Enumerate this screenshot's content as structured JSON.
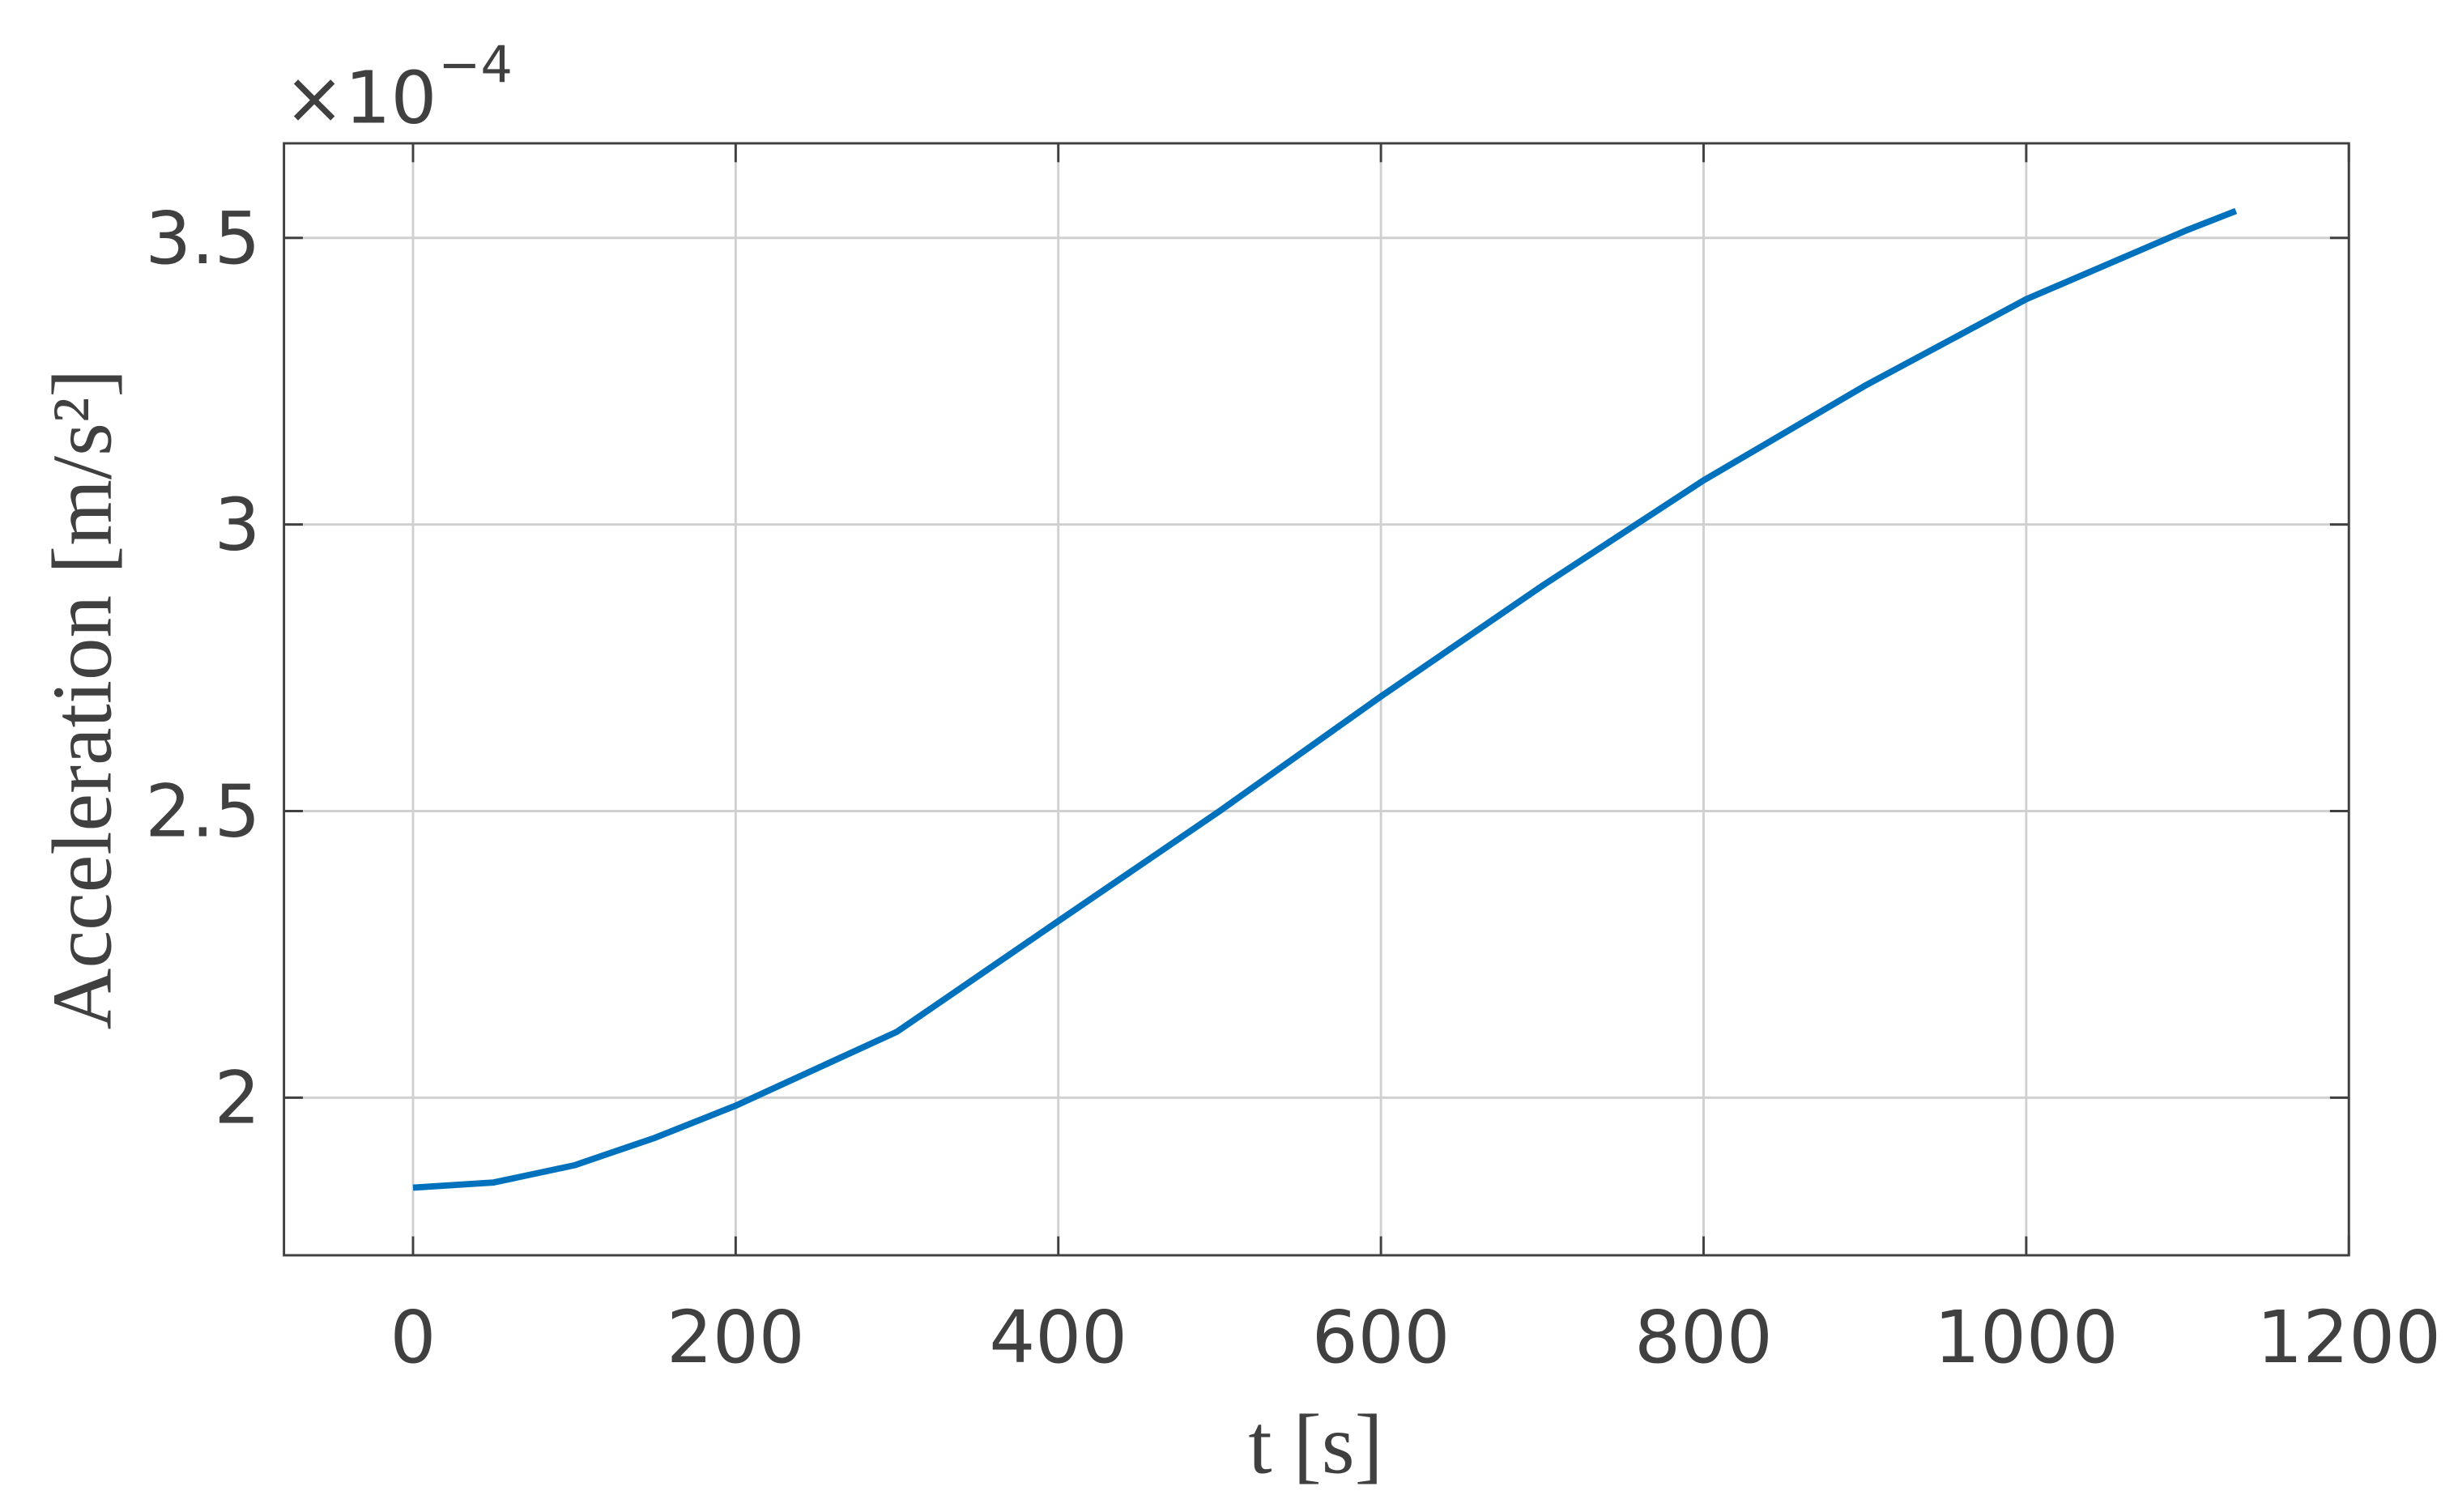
{
  "chart_data": {
    "type": "line",
    "x_label": "t [s]",
    "y_label": "Acceleration [m/s²]",
    "y_scale_base": "×10",
    "y_scale_exponent": "−4",
    "x": [
      0,
      50,
      100,
      150,
      200,
      300,
      400,
      500,
      600,
      700,
      800,
      900,
      1000,
      1100,
      1130
    ],
    "series": [
      {
        "color": "#0072bd",
        "values": [
          1.843,
          1.852,
          1.882,
          1.93,
          1.986,
          2.115,
          2.308,
          2.5,
          2.7,
          2.893,
          3.077,
          3.242,
          3.393,
          3.514,
          3.547
        ]
      }
    ],
    "xlim": [
      -80,
      1200
    ],
    "ylim": [
      1.725,
      3.665
    ],
    "xticks": [
      0,
      200,
      400,
      600,
      800,
      1000,
      1200
    ],
    "yticks": [
      2,
      2.5,
      3,
      3.5
    ],
    "grid": true
  }
}
